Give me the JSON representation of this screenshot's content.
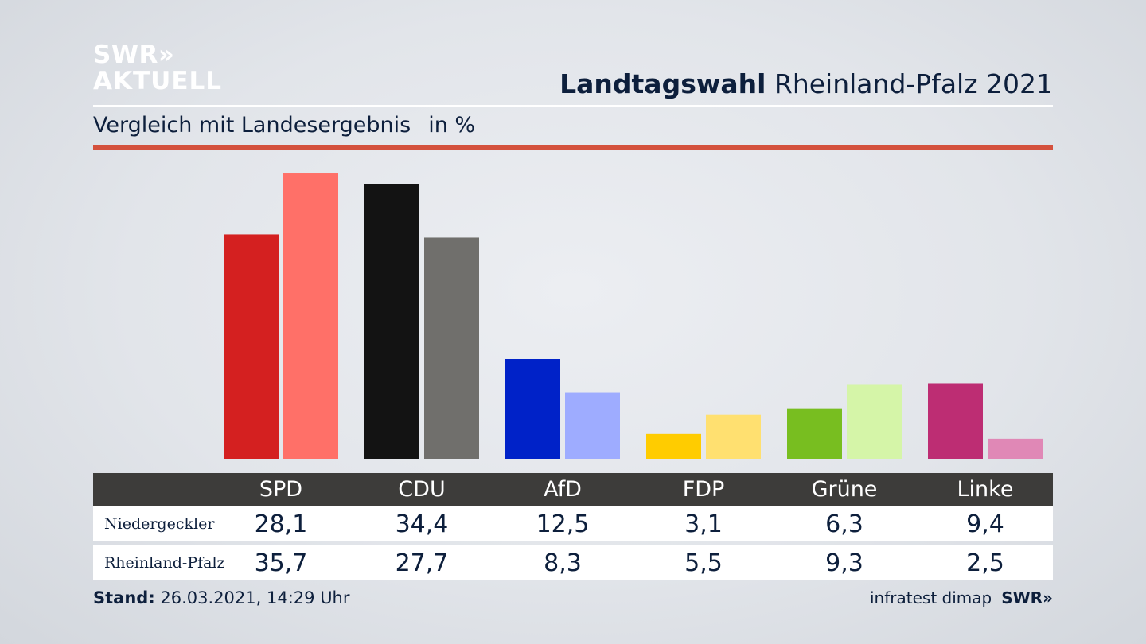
{
  "logo": {
    "line1": "SWR»",
    "line2": "AKTUELL"
  },
  "header": {
    "title_bold": "Landtagswahl",
    "title_rest": "Rheinland-Pfalz 2021"
  },
  "subtitle": {
    "text": "Vergleich mit Landesergebnis",
    "unit": "in %"
  },
  "colors": {
    "accent_rule": "#d4513d",
    "table_header_bg": "#3d3c3a"
  },
  "chart_data": {
    "type": "bar",
    "categories": [
      "SPD",
      "CDU",
      "AfD",
      "FDP",
      "Grüne",
      "Linke"
    ],
    "series": [
      {
        "name": "Niedergeckler",
        "values": [
          28.1,
          34.4,
          12.5,
          3.1,
          6.3,
          9.4
        ],
        "colors": [
          "#d42020",
          "#131313",
          "#0022c8",
          "#ffcc00",
          "#78be20",
          "#bd2d73"
        ]
      },
      {
        "name": "Rheinland-Pfalz",
        "values": [
          35.7,
          27.7,
          8.3,
          5.5,
          9.3,
          2.5
        ],
        "colors": [
          "#ff7068",
          "#706f6c",
          "#9eacff",
          "#ffe070",
          "#d5f5a8",
          "#e088b6"
        ]
      }
    ],
    "ylim": [
      0,
      36
    ],
    "value_labels": {
      "Niedergeckler": [
        "28,1",
        "34,4",
        "12,5",
        "3,1",
        "6,3",
        "9,4"
      ],
      "Rheinland-Pfalz": [
        "35,7",
        "27,7",
        "8,3",
        "5,5",
        "9,3",
        "2,5"
      ]
    }
  },
  "footer": {
    "stand_label": "Stand:",
    "stand_value": "26.03.2021, 14:29 Uhr",
    "source": "infratest dimap",
    "brand": "SWR»"
  }
}
